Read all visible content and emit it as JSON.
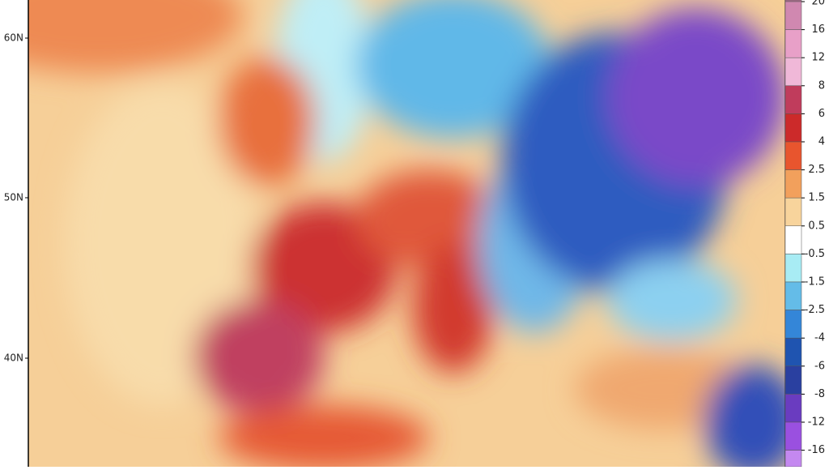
{
  "map": {
    "lat_labels": [
      "60N",
      "50N",
      "40N"
    ],
    "legend": {
      "ticks": [
        20,
        16,
        12,
        8,
        6,
        4,
        2.5,
        1.5,
        0.5,
        -0.5,
        -1.5,
        -2.5,
        -4,
        -6,
        -8,
        -12,
        -16
      ],
      "colors": [
        "#b07090",
        "#d088b0",
        "#e8a0c8",
        "#f0b8d8",
        "#c03c5c",
        "#cc2a2a",
        "#e8552e",
        "#f2a05c",
        "#f8d49c",
        "#ffffff",
        "#a8ecf4",
        "#64bce8",
        "#3486d8",
        "#1f54b0",
        "#2a40a0",
        "#6a3cc0",
        "#9a50e0",
        "#c488f0"
      ]
    }
  }
}
